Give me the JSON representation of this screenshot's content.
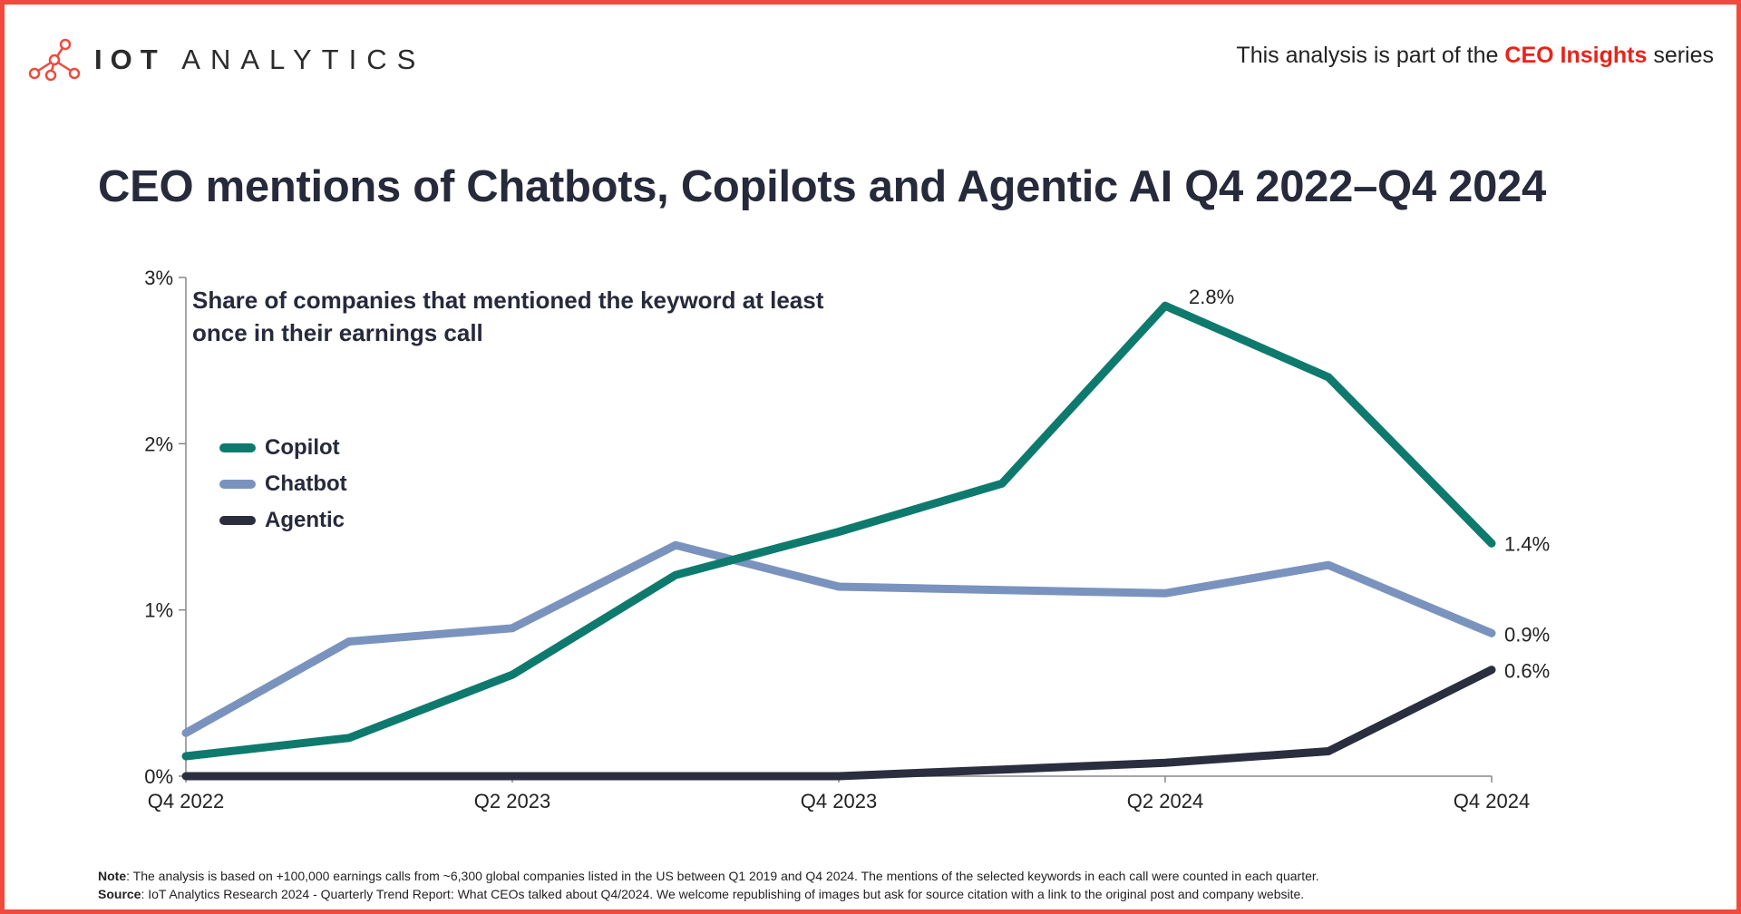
{
  "header": {
    "logo_text_bold": "IOT",
    "logo_text_light": "ANALYTICS",
    "series_prefix": "This analysis is part of the",
    "series_highlight": "CEO Insights",
    "series_suffix": "series"
  },
  "colors": {
    "frame": "#f04a3d",
    "copilot": "#0e7a6e",
    "chatbot": "#7a93be",
    "agentic": "#2b2e3f",
    "highlight": "#e8231a"
  },
  "title": "CEO mentions of Chatbots, Copilots and Agentic AI Q4 2022–Q4 2024",
  "chart_data": {
    "type": "line",
    "subtitle": "Share of companies that mentioned the keyword at least once in their earnings call",
    "categories": [
      "Q4 2022",
      "Q1 2023",
      "Q2 2023",
      "Q3 2023",
      "Q4 2023",
      "Q1 2024",
      "Q2 2024",
      "Q3 2024",
      "Q4 2024"
    ],
    "x_tick_labels": [
      "Q4 2022",
      "Q2 2023",
      "Q4 2023",
      "Q2 2024",
      "Q4 2024"
    ],
    "y_tick_labels": [
      "0%",
      "1%",
      "2%",
      "3%"
    ],
    "ylim": [
      0,
      3
    ],
    "unit": "%",
    "grid": false,
    "legend_position": "left",
    "series": [
      {
        "name": "Copilot",
        "values": [
          0.12,
          0.23,
          0.61,
          1.21,
          1.47,
          1.76,
          2.83,
          2.4,
          1.4
        ]
      },
      {
        "name": "Chatbot",
        "values": [
          0.26,
          0.81,
          0.89,
          1.39,
          1.14,
          1.12,
          1.1,
          1.27,
          0.86
        ]
      },
      {
        "name": "Agentic",
        "values": [
          0.0,
          0.0,
          0.0,
          0.0,
          0.0,
          0.04,
          0.08,
          0.15,
          0.64
        ]
      }
    ],
    "data_labels": [
      {
        "series": "Copilot",
        "index": 6,
        "text": "2.8%"
      },
      {
        "series": "Copilot",
        "index": 8,
        "text": "1.4%"
      },
      {
        "series": "Chatbot",
        "index": 8,
        "text": "0.9%"
      },
      {
        "series": "Agentic",
        "index": 8,
        "text": "0.6%"
      }
    ]
  },
  "footnote": {
    "note_label": "Note",
    "note_text": ": The analysis is based on +100,000 earnings calls from ~6,300 global companies listed in the US between Q1 2019 and Q4 2024. The mentions of the selected keywords in each call were counted in each quarter.",
    "source_label": "Source",
    "source_text": ": IoT Analytics Research 2024 - Quarterly Trend Report: What CEOs talked about Q4/2024. We welcome republishing of images but ask for source citation with a link to the original post and company website."
  }
}
